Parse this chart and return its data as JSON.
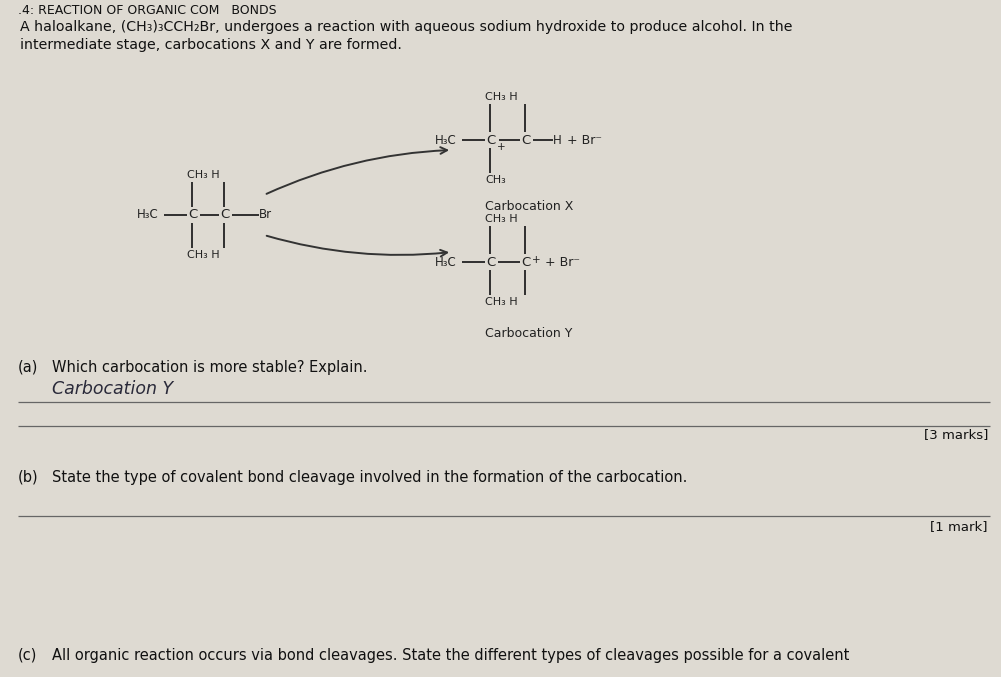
{
  "page_bg": "#d8d5cc",
  "struct_color": "#222222",
  "text_color": "#111111",
  "hand_color": "#333344",
  "line_color": "#555555",
  "header": ".4: REACTION OF ORGANIC COM   BONDS",
  "intro1": "A haloalkane, (CH₃)₃CCH₂Br, undergoes a reaction with aqueous sodium hydroxide to produce alcohol. In the",
  "intro2": "intermediate stage, carbocations X and Y are formed.",
  "qa_label": "(a)",
  "qa_text": "Which carbocation is more stable? Explain.",
  "qa_answer": "Carbocation Y",
  "marks_a": "[3 marks]",
  "qb_label": "(b)",
  "qb_text": "State the type of covalent bond cleavage involved in the formation of the carbocation.",
  "marks_b": "[1 mark]",
  "qc_label": "(c)",
  "qc_text": "All organic reaction occurs via bond cleavages. State the different types of cleavages possible for a covalent"
}
